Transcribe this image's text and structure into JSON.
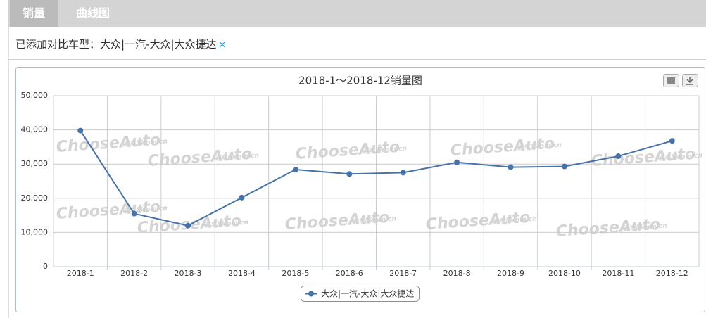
{
  "tabs": [
    "销量",
    "曲线图"
  ],
  "compare_label": "已添加对比车型：",
  "compare_value": "大众|一汽-大众|大众捷达",
  "remove": "×",
  "watermark": {
    "brand": "ChooseAuto",
    "site": "选车网com.cn"
  },
  "chart_data": {
    "type": "line",
    "title": "2018-1～2018-12销量图",
    "categories": [
      "2018-1",
      "2018-2",
      "2018-3",
      "2018-4",
      "2018-5",
      "2018-6",
      "2018-7",
      "2018-8",
      "2018-9",
      "2018-10",
      "2018-11",
      "2018-12"
    ],
    "series": [
      {
        "name": "大众|一汽-大众|大众捷达",
        "color": "#4572a7",
        "values": [
          39800,
          15500,
          12000,
          20200,
          28400,
          27100,
          27500,
          30500,
          29100,
          29300,
          32300,
          36800
        ]
      }
    ],
    "ylim": [
      0,
      50000
    ],
    "yticks": [
      0,
      {
        "value": 10000,
        "label": "10,000"
      },
      {
        "value": 20000,
        "label": "20,000"
      },
      {
        "value": 30000,
        "label": "30,000"
      },
      {
        "value": 40000,
        "label": "40,000"
      },
      {
        "value": 50000,
        "label": "50,000"
      }
    ],
    "grid": true
  }
}
